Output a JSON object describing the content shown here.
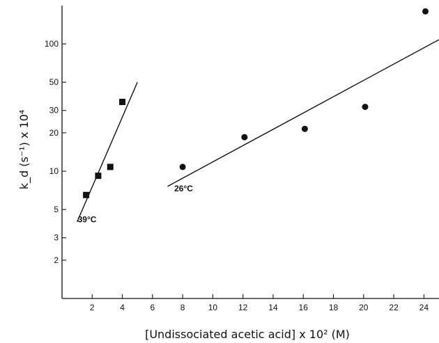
{
  "chart_data": {
    "type": "scatter",
    "title": "",
    "xlabel": "[Undissociated acetic acid]  x 10² (M)",
    "ylabel": "k_d (s⁻¹) x 10⁴",
    "x_scale": "linear",
    "y_scale": "log",
    "xlim": [
      0,
      25
    ],
    "ylim": [
      1,
      200
    ],
    "x_ticks": [
      2,
      4,
      6,
      8,
      10,
      12,
      14,
      16,
      18,
      20,
      22,
      24
    ],
    "y_ticks": [
      2,
      3,
      5,
      10,
      20,
      30,
      50,
      100
    ],
    "grid": false,
    "series": [
      {
        "marker": "square",
        "x": [
          1.6,
          2.4,
          3.2,
          4.0
        ],
        "y": [
          6.5,
          9.2,
          10.8,
          35
        ],
        "fit_line": {
          "x": [
            1.0,
            5.0
          ],
          "y": [
            4.0,
            50
          ]
        }
      },
      {
        "marker": "circle",
        "x": [
          8.0,
          12.1,
          16.1,
          20.1,
          24.1
        ],
        "y": [
          10.8,
          18.5,
          21.5,
          32,
          180
        ],
        "fit_line": {
          "x": [
            7.0,
            25.0
          ],
          "y": [
            7.6,
            108
          ]
        }
      }
    ],
    "annotations": [
      {
        "text": "39°C",
        "x": 1.6,
        "y": 4.5
      },
      {
        "text": "26°C",
        "x": 8.0,
        "y": 7.9
      }
    ]
  }
}
